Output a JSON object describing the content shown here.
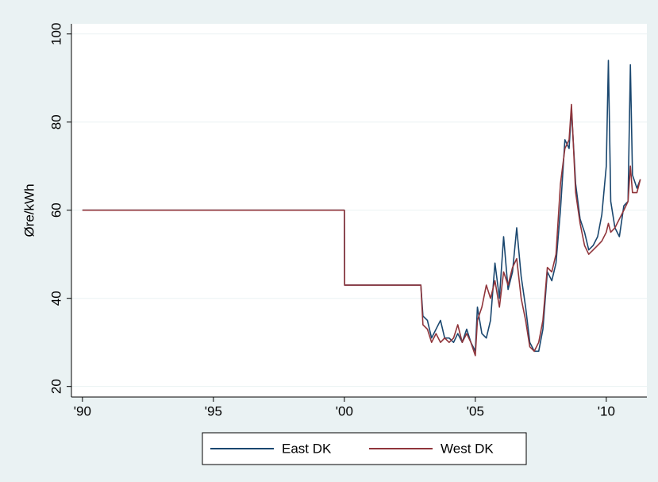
{
  "chart_data": {
    "type": "line",
    "y_label": "Øre/kWh",
    "x": [
      1990,
      2000,
      2000.01,
      2002.92,
      2003.0,
      2003.17,
      2003.33,
      2003.5,
      2003.67,
      2003.83,
      2004.0,
      2004.17,
      2004.33,
      2004.5,
      2004.67,
      2004.83,
      2005.0,
      2005.08,
      2005.25,
      2005.42,
      2005.58,
      2005.75,
      2005.92,
      2006.08,
      2006.25,
      2006.42,
      2006.58,
      2006.75,
      2006.92,
      2007.08,
      2007.25,
      2007.42,
      2007.58,
      2007.75,
      2007.92,
      2008.08,
      2008.25,
      2008.42,
      2008.58,
      2008.67,
      2008.83,
      2009.0,
      2009.17,
      2009.33,
      2009.5,
      2009.67,
      2009.83,
      2010.0,
      2010.08,
      2010.17,
      2010.33,
      2010.5,
      2010.67,
      2010.83,
      2010.92,
      2011.0,
      2011.17,
      2011.3
    ],
    "series": [
      {
        "name": "East DK",
        "color": "#1a476f",
        "values": [
          60,
          60,
          43,
          43,
          36,
          35,
          31,
          33,
          35,
          31,
          31,
          30,
          32,
          30,
          33,
          30,
          28,
          38,
          32,
          31,
          35,
          48,
          40,
          54,
          42,
          46,
          56,
          45,
          38,
          30,
          28,
          28,
          33,
          46,
          44,
          48,
          60,
          76,
          74,
          83,
          66,
          58,
          55,
          51,
          52,
          54,
          59,
          70,
          94,
          62,
          56,
          54,
          61,
          62,
          93,
          68,
          65,
          67
        ]
      },
      {
        "name": "West DK",
        "color": "#90353b",
        "values": [
          60,
          60,
          43,
          43,
          34,
          33,
          30,
          32,
          30,
          31,
          30,
          31,
          34,
          30,
          32,
          30,
          27,
          35,
          38,
          43,
          40,
          44,
          38,
          46,
          43,
          47,
          49,
          40,
          35,
          29,
          28,
          30,
          35,
          47,
          46,
          50,
          66,
          74,
          76,
          84,
          64,
          57,
          52,
          50,
          51,
          52,
          53,
          55,
          57,
          55,
          56,
          58,
          60,
          62,
          70,
          64,
          64,
          67
        ]
      }
    ],
    "xlim": [
      1989.58,
      2011.55
    ],
    "xticks": [
      {
        "value": 1990,
        "label": "'90"
      },
      {
        "value": 1995,
        "label": "'95"
      },
      {
        "value": 2000,
        "label": "'00"
      },
      {
        "value": 2005,
        "label": "'05"
      },
      {
        "value": 2010,
        "label": "'10"
      }
    ],
    "ylim": [
      17.6,
      102.3
    ],
    "yticks": [
      20,
      40,
      60,
      80,
      100
    ],
    "grid": true
  }
}
